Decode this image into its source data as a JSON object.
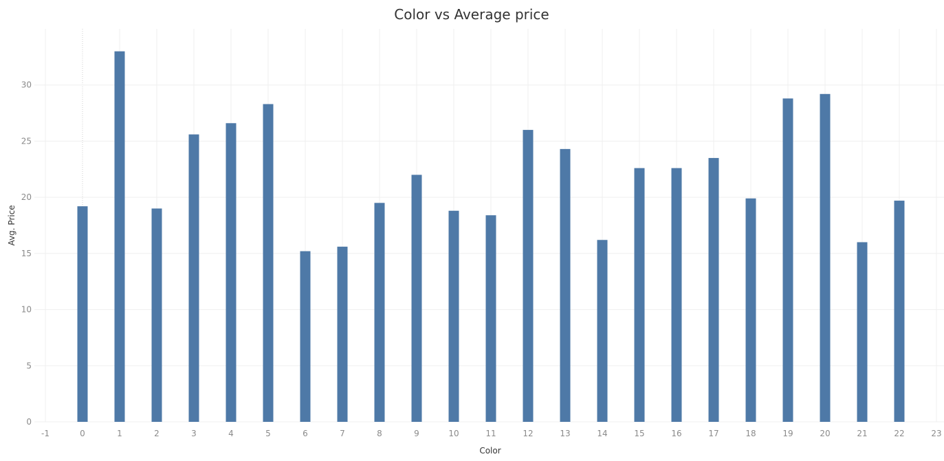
{
  "chart_data": {
    "type": "bar",
    "title": "Color vs Average price",
    "xlabel": "Color",
    "ylabel": "Avg. Price",
    "x": [
      0,
      1,
      2,
      3,
      4,
      5,
      6,
      7,
      8,
      9,
      10,
      11,
      12,
      13,
      14,
      15,
      16,
      17,
      18,
      19,
      20,
      21,
      22
    ],
    "values": [
      19.2,
      33.0,
      19.0,
      25.6,
      26.6,
      28.3,
      15.2,
      15.6,
      19.5,
      22.0,
      18.8,
      18.4,
      26.0,
      24.3,
      16.2,
      22.6,
      22.6,
      23.5,
      19.9,
      28.8,
      29.2,
      16.0,
      19.7
    ],
    "xlim": [
      -1,
      23
    ],
    "ylim": [
      0,
      35
    ],
    "x_ticks": [
      "-1",
      "0",
      "1",
      "2",
      "3",
      "4",
      "5",
      "6",
      "7",
      "8",
      "9",
      "10",
      "11",
      "12",
      "13",
      "14",
      "15",
      "16",
      "17",
      "18",
      "19",
      "20",
      "21",
      "22",
      "23"
    ],
    "y_ticks": [
      "0",
      "5",
      "10",
      "15",
      "20",
      "25",
      "30"
    ],
    "grid": true,
    "bar_color": "#4e79a7"
  }
}
